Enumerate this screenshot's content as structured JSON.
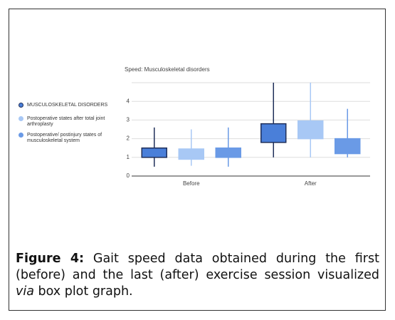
{
  "chart_data": {
    "type": "box",
    "title": "Speed: Musculoskeletal disorders",
    "categories": [
      "Before",
      "After"
    ],
    "series": [
      {
        "name": "MUSCULOSKELETAL DISORDERS",
        "color": "#4a7fd9",
        "stroke": "#1f2f5a",
        "low": [
          0.5,
          1.0
        ],
        "q1": [
          1.0,
          1.8
        ],
        "q3": [
          1.5,
          2.8
        ],
        "high": [
          2.6,
          5.0
        ]
      },
      {
        "name": "Postoperative states after total joint arthroplasty",
        "color": "#a8c8f5",
        "stroke": "#a8c8f5",
        "low": [
          0.55,
          1.0
        ],
        "q1": [
          0.9,
          2.0
        ],
        "q3": [
          1.45,
          2.95
        ],
        "high": [
          2.5,
          5.0
        ]
      },
      {
        "name": "Postoperative/ postinjury states of musculoskeletal system",
        "color": "#6a9ae6",
        "stroke": "#6a9ae6",
        "low": [
          0.5,
          1.0
        ],
        "q1": [
          1.0,
          1.2
        ],
        "q3": [
          1.5,
          2.0
        ],
        "high": [
          2.6,
          3.6
        ]
      }
    ],
    "ylim": [
      0,
      5
    ],
    "yticks": [
      0,
      1,
      2,
      3,
      4
    ],
    "grid": true
  },
  "caption": {
    "label": "Figure 4:",
    "text1": " Gait speed data obtained during the first (before) and the last (after) exercise session visualized ",
    "italic": "via",
    "text2": " box plot graph."
  }
}
